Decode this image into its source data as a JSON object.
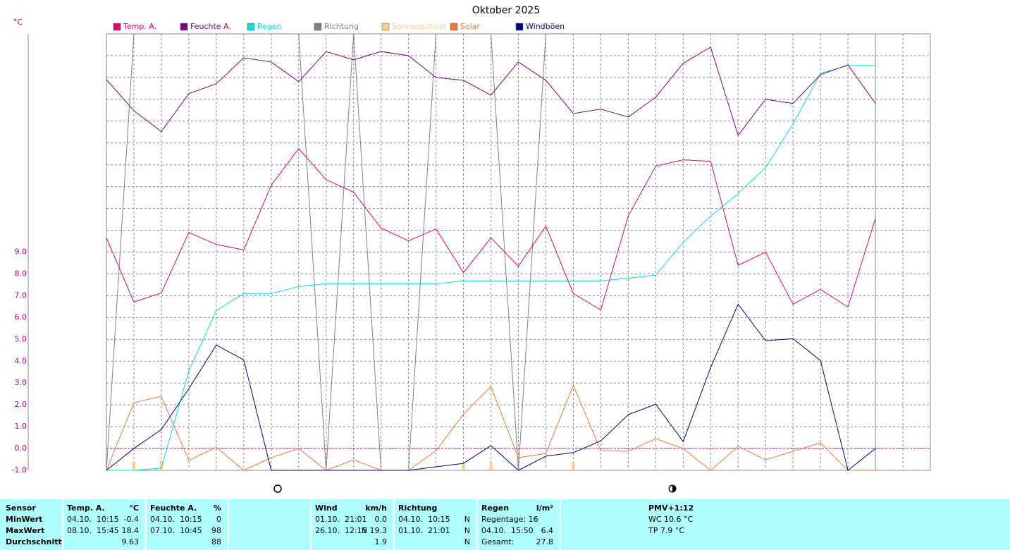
{
  "chart_data": {
    "type": "line",
    "title": "Oktober 2025",
    "y_unit": "°C",
    "x": [
      1,
      2,
      3,
      4,
      5,
      6,
      7,
      8,
      9,
      10,
      11,
      12,
      13,
      14,
      15,
      16,
      17,
      18,
      19,
      20,
      21,
      22,
      23,
      24,
      25,
      26,
      27,
      28,
      29
    ],
    "xlim": [
      1,
      31
    ],
    "xticks": [
      {
        "value": 1,
        "label": null
      },
      {
        "value": 2,
        "label": null
      },
      {
        "value": 3,
        "label": null
      },
      {
        "value": 4,
        "label": null
      },
      {
        "value": 5,
        "label": null
      },
      {
        "value": 6,
        "label": null
      },
      {
        "value": 7,
        "label": null
      },
      {
        "value": 8,
        "label": null
      },
      {
        "value": 9,
        "label": null
      },
      {
        "value": 10,
        "label": null
      },
      {
        "value": 11,
        "label": null
      },
      {
        "value": 12,
        "label": null
      },
      {
        "value": 13,
        "label": null
      },
      {
        "value": 14,
        "label": null
      },
      {
        "value": 15,
        "label": null
      },
      {
        "value": 16,
        "label": null
      },
      {
        "value": 17,
        "label": null
      },
      {
        "value": 18,
        "label": null
      },
      {
        "value": 19,
        "label": null
      },
      {
        "value": 20,
        "label": null
      },
      {
        "value": 21,
        "label": null
      },
      {
        "value": 22,
        "label": null
      },
      {
        "value": 23,
        "label": null
      },
      {
        "value": 24,
        "label": null
      },
      {
        "value": 25,
        "label": null
      },
      {
        "value": 26,
        "label": null
      },
      {
        "value": 27,
        "label": null
      },
      {
        "value": 28,
        "label": null
      },
      {
        "value": 29,
        "label": null
      },
      {
        "value": 30,
        "label": null
      },
      {
        "value": 31,
        "label": null
      }
    ],
    "ylim": [
      -1,
      19
    ],
    "yticks": [
      {
        "value": -1,
        "label": "-1.0"
      },
      {
        "value": 0,
        "label": "0.0"
      },
      {
        "value": 1,
        "label": "1.0"
      },
      {
        "value": 2,
        "label": "2.0"
      },
      {
        "value": 3,
        "label": "3.0"
      },
      {
        "value": 4,
        "label": "4.0"
      },
      {
        "value": 5,
        "label": "5.0"
      },
      {
        "value": 6,
        "label": "6.0"
      },
      {
        "value": 7,
        "label": "7.0"
      },
      {
        "value": 8,
        "label": "8.0"
      },
      {
        "value": 9,
        "label": "9.0"
      },
      {
        "value": 10,
        "label": null
      },
      {
        "value": 11,
        "label": null
      },
      {
        "value": 12,
        "label": null
      },
      {
        "value": 13,
        "label": null
      },
      {
        "value": 14,
        "label": null
      },
      {
        "value": 15,
        "label": null
      },
      {
        "value": 16,
        "label": null
      },
      {
        "value": 17,
        "label": null
      },
      {
        "value": 18,
        "label": null
      },
      {
        "value": 19,
        "label": null
      }
    ],
    "grid": true,
    "hline": {
      "value": 0,
      "color": "#cc0099"
    },
    "marker_x": 29,
    "series": [
      {
        "name": "Temp. A.",
        "color": "#e0007f",
        "type": "line",
        "values": [
          9.65,
          6.71,
          7.13,
          9.9,
          9.35,
          9.1,
          12.06,
          13.74,
          12.32,
          11.74,
          10.1,
          9.52,
          10.06,
          8.06,
          9.65,
          8.35,
          10.19,
          7.1,
          6.35,
          10.65,
          12.94,
          13.23,
          13.16,
          8.39,
          9.0,
          6.61,
          7.29,
          6.48,
          10.55
        ]
      },
      {
        "name": "Feuchte A.",
        "color": "#800080",
        "type": "line",
        "values": [
          16.9,
          15.48,
          14.52,
          16.26,
          16.71,
          17.9,
          17.71,
          16.81,
          18.19,
          17.81,
          18.19,
          18.0,
          17.0,
          16.87,
          16.19,
          17.71,
          16.87,
          15.35,
          15.55,
          15.19,
          16.1,
          17.65,
          18.39,
          14.35,
          16.0,
          15.81,
          17.13,
          17.58,
          15.81
        ]
      },
      {
        "name": "Regen",
        "color": "#00e0e0",
        "type": "line",
        "values": [
          -1,
          -1,
          -0.9,
          3.55,
          6.32,
          7.1,
          7.1,
          7.42,
          7.55,
          7.55,
          7.55,
          7.55,
          7.55,
          7.68,
          7.68,
          7.68,
          7.68,
          7.68,
          7.68,
          7.81,
          7.94,
          9.45,
          10.65,
          11.68,
          12.87,
          14.87,
          17.19,
          17.55,
          17.55
        ]
      },
      {
        "name": "Richtung",
        "color": "#808080",
        "type": "line",
        "values": [
          -1,
          19,
          19,
          19,
          19,
          19,
          19,
          19,
          -1,
          19,
          -1,
          -1,
          19,
          19,
          19,
          -1,
          19,
          19,
          19,
          19,
          19,
          19,
          19,
          19,
          19,
          19,
          19,
          19,
          19
        ]
      },
      {
        "name": "Sonnenschein",
        "color": "#ffcc88",
        "type": "bar",
        "values": [
          -1,
          -0.6,
          -0.55,
          -0.95,
          -0.93,
          -0.95,
          -0.95,
          -0.95,
          -0.95,
          -0.95,
          -0.95,
          -0.95,
          -0.95,
          -0.7,
          -0.6,
          -0.95,
          -0.95,
          -0.6,
          -0.95,
          -0.95,
          -0.93,
          -0.95,
          -0.95,
          -0.93,
          -0.95,
          -0.93,
          -0.93,
          -0.95,
          -1
        ]
      },
      {
        "name": "Solar",
        "color": "#ee7733",
        "type": "line",
        "values": [
          -1,
          2.1,
          2.39,
          -0.55,
          0.06,
          -1,
          -0.42,
          0,
          -1,
          -0.52,
          -1,
          -1,
          -0.1,
          1.58,
          2.84,
          -0.42,
          -0.23,
          2.9,
          -0.1,
          -0.13,
          0.45,
          0,
          -1,
          0.1,
          -0.52,
          -0.13,
          0.26,
          -1,
          -1
        ]
      },
      {
        "name": "Windböen",
        "color": "#000080",
        "type": "line",
        "values": [
          -1,
          0,
          0.87,
          2.74,
          4.74,
          4.06,
          -1,
          -1,
          -1,
          -1,
          -1,
          -1,
          -0.84,
          -0.68,
          0.13,
          -1,
          -0.35,
          -0.19,
          0.35,
          1.55,
          2.03,
          0.32,
          3.71,
          6.61,
          4.94,
          5.03,
          4.03,
          -1,
          0
        ]
      }
    ]
  },
  "table": {
    "row_labels": [
      "Sensor",
      "MinWert",
      "MaxWert",
      "Durchschnitt"
    ],
    "columns": [
      {
        "title": "Temp. A.",
        "unit": "°C",
        "rows": [
          [
            "04.10.  10:15",
            "-0.4"
          ],
          [
            "08.10.  15:45",
            "18.4"
          ],
          [
            null,
            "9.63"
          ]
        ]
      },
      {
        "title": "Feuchte A.",
        "unit": "%",
        "rows": [
          [
            "04.10.  10:15",
            "0"
          ],
          [
            "07.10.  10:45",
            "98"
          ],
          [
            null,
            "88"
          ]
        ]
      },
      {
        "title": "Wind",
        "unit": "km/h",
        "rows": [
          [
            "01.10.  21:01",
            "0.0"
          ],
          [
            "26.10.  12:15",
            "N 19.3"
          ],
          [
            null,
            "1.9"
          ]
        ]
      },
      {
        "title": "Richtung",
        "unit": null,
        "rows": [
          [
            "04.10.  10:15",
            "N"
          ],
          [
            "01.10.  21:01",
            "N"
          ],
          [
            null,
            "N"
          ]
        ]
      },
      {
        "title": "Regen",
        "unit": "l/m²",
        "rows": [
          [
            "Regentage: 16",
            null
          ],
          [
            "04.10.  15:50",
            "6.4"
          ],
          [
            "Gesamt:",
            "27.8"
          ]
        ]
      },
      {
        "title": "PMV+1:12",
        "unit": null,
        "rows": [
          [
            "WC 10.6 °C",
            null
          ],
          [
            "TP 7.9 °C",
            null
          ]
        ]
      }
    ]
  }
}
